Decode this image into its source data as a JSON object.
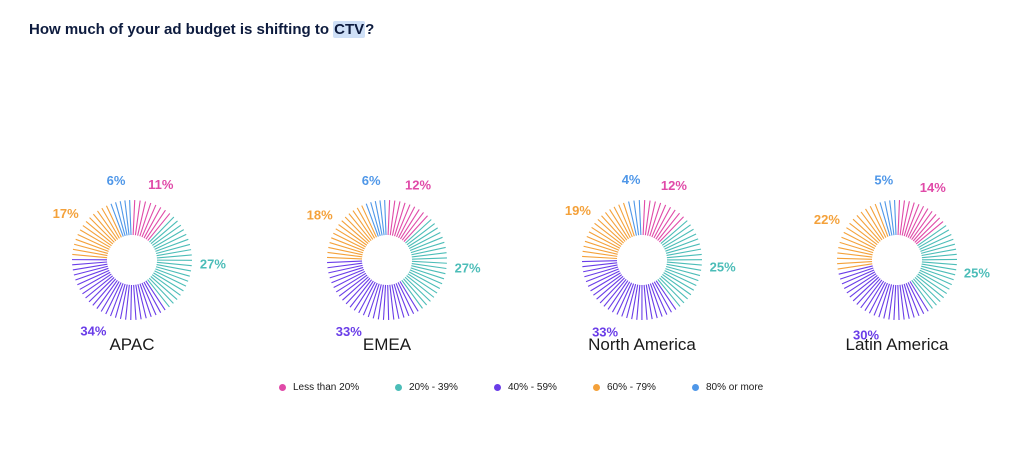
{
  "title": {
    "prefix": "How much of your ad budget is shifting to ",
    "highlight": "CTV",
    "suffix": "?"
  },
  "colors": {
    "less_than_20": "#e04aa8",
    "20_39": "#4cbdb8",
    "40_59": "#6a3de8",
    "60_79": "#f4a13a",
    "80_plus": "#4f97e8"
  },
  "legend": [
    {
      "label": "Less than 20%",
      "color": "#e04aa8"
    },
    {
      "label": "20% - 39%",
      "color": "#4cbdb8"
    },
    {
      "label": "40% - 59%",
      "color": "#6a3de8"
    },
    {
      "label": "60% - 79%",
      "color": "#f4a13a"
    },
    {
      "label": "80% or more",
      "color": "#4f97e8"
    }
  ],
  "chart_data": [
    {
      "type": "pie",
      "title": "APAC",
      "categories": [
        "Less than 20%",
        "20% - 39%",
        "40% - 59%",
        "60% - 79%",
        "80% or more"
      ],
      "values": [
        11,
        27,
        34,
        17,
        6
      ],
      "labels": [
        "11%",
        "27%",
        "34%",
        "17%",
        "6%"
      ]
    },
    {
      "type": "pie",
      "title": "EMEA",
      "categories": [
        "Less than 20%",
        "20% - 39%",
        "40% - 59%",
        "60% - 79%",
        "80% or more"
      ],
      "values": [
        12,
        27,
        33,
        18,
        6
      ],
      "labels": [
        "12%",
        "27%",
        "33%",
        "18%",
        "6%"
      ]
    },
    {
      "type": "pie",
      "title": "North America",
      "categories": [
        "Less than 20%",
        "20% - 39%",
        "40% - 59%",
        "60% - 79%",
        "80% or more"
      ],
      "values": [
        12,
        25,
        33,
        19,
        4
      ],
      "labels": [
        "12%",
        "25%",
        "33%",
        "19%",
        "4%"
      ]
    },
    {
      "type": "pie",
      "title": "Latin America",
      "categories": [
        "Less than 20%",
        "20% - 39%",
        "40% - 59%",
        "60% - 79%",
        "80% or more"
      ],
      "values": [
        14,
        25,
        30,
        22,
        5
      ],
      "labels": [
        "14%",
        "25%",
        "30%",
        "22%",
        "5%"
      ]
    }
  ]
}
